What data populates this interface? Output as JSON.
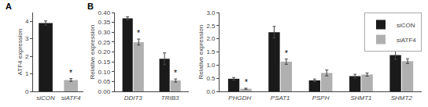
{
  "chart_data": [
    {
      "type": "bar",
      "title": "A",
      "ylabel": "ATF4 expression",
      "categories": [
        "siCON",
        "siATF4"
      ],
      "values": [
        3.9,
        0.65
      ],
      "errors": [
        0.12,
        0.08
      ],
      "colors": [
        "#1a1a1a",
        "#b0b0b0"
      ],
      "ylim": [
        0,
        4.5
      ],
      "yticks": [
        0,
        1,
        2,
        3,
        4
      ],
      "grid": false,
      "annotations": [
        {
          "text": "*",
          "category": "siATF4",
          "y": 0.73
        }
      ]
    },
    {
      "type": "bar",
      "title": "B",
      "ylabel": "Relative expression",
      "categories": [
        "DDIT3",
        "TRIB3"
      ],
      "series": [
        {
          "name": "siCON",
          "color": "#1a1a1a",
          "values": [
            0.37,
            0.165
          ],
          "errors": [
            0.008,
            0.03
          ]
        },
        {
          "name": "siATF4",
          "color": "#b0b0b0",
          "values": [
            0.25,
            0.055
          ],
          "errors": [
            0.015,
            0.008
          ]
        }
      ],
      "ylim": [
        0,
        0.4
      ],
      "yticks": [
        {
          "value": 0,
          "label": "0.00"
        },
        0.05,
        {
          "value": 0.1,
          "label": "0.10"
        },
        0.15,
        {
          "value": 0.2,
          "label": "0.20"
        },
        0.25,
        {
          "value": 0.3,
          "label": "0.30"
        },
        0.35,
        {
          "value": 0.4,
          "label": "0.40"
        }
      ],
      "grid": false,
      "annotations": [
        {
          "text": "*",
          "category": "DDIT3",
          "series": "siATF4",
          "y": 0.265
        },
        {
          "text": "*",
          "category": "TRIB3",
          "series": "siATF4",
          "y": 0.062
        }
      ]
    },
    {
      "type": "bar",
      "ylabel": "Relative expression",
      "categories": [
        "PHGDH",
        "PSAT1",
        "PSPH",
        "SHMT1",
        "SHMT2"
      ],
      "series": [
        {
          "name": "siCON",
          "color": "#1a1a1a",
          "values": [
            0.48,
            2.25,
            0.42,
            0.58,
            1.38
          ],
          "errors": [
            0.05,
            0.22,
            0.05,
            0.07,
            0.17
          ]
        },
        {
          "name": "siATF4",
          "color": "#b0b0b0",
          "values": [
            0.1,
            1.13,
            0.7,
            0.64,
            1.15
          ],
          "errors": [
            0.02,
            0.1,
            0.11,
            0.06,
            0.09
          ]
        }
      ],
      "ylim": [
        0,
        3.0
      ],
      "yticks": [
        {
          "value": 0,
          "label": "0.0"
        },
        0.5,
        {
          "value": 1,
          "label": "1.0"
        },
        1.5,
        {
          "value": 2,
          "label": "2.0"
        },
        2.5,
        {
          "value": 3,
          "label": "3.0"
        }
      ],
      "grid": false,
      "legend": "upper right",
      "annotations": [
        {
          "text": "*",
          "category": "PHGDH",
          "series": "siATF4",
          "y": 0.12
        },
        {
          "text": "*",
          "category": "PSAT1",
          "series": "siATF4",
          "y": 1.22
        }
      ]
    }
  ]
}
